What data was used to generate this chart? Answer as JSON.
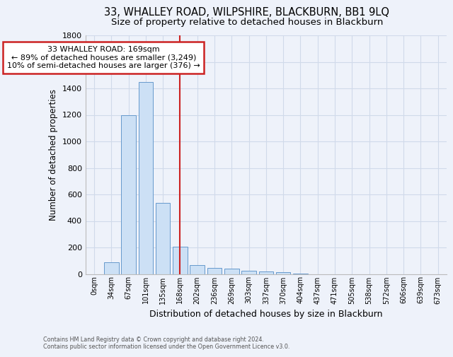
{
  "title": "33, WHALLEY ROAD, WILPSHIRE, BLACKBURN, BB1 9LQ",
  "subtitle": "Size of property relative to detached houses in Blackburn",
  "xlabel": "Distribution of detached houses by size in Blackburn",
  "ylabel": "Number of detached properties",
  "bar_labels": [
    "0sqm",
    "34sqm",
    "67sqm",
    "101sqm",
    "135sqm",
    "168sqm",
    "202sqm",
    "236sqm",
    "269sqm",
    "303sqm",
    "337sqm",
    "370sqm",
    "404sqm",
    "437sqm",
    "471sqm",
    "505sqm",
    "538sqm",
    "572sqm",
    "606sqm",
    "639sqm",
    "673sqm"
  ],
  "bar_values": [
    0,
    90,
    1200,
    1450,
    535,
    205,
    65,
    48,
    38,
    25,
    18,
    12,
    5,
    0,
    0,
    0,
    0,
    0,
    0,
    0,
    0
  ],
  "bar_color": "#cce0f5",
  "bar_edge_color": "#6699cc",
  "vline_x": 5,
  "annotation_text": "  33 WHALLEY ROAD: 169sqm  \n← 89% of detached houses are smaller (3,249)\n10% of semi-detached houses are larger (376) →",
  "annotation_box_color": "#ffffff",
  "annotation_box_edge": "#cc2222",
  "vline_color": "#cc2222",
  "ylim": [
    0,
    1800
  ],
  "yticks": [
    0,
    200,
    400,
    600,
    800,
    1000,
    1200,
    1400,
    1600,
    1800
  ],
  "grid_color": "#d0daea",
  "footer_line1": "Contains HM Land Registry data © Crown copyright and database right 2024.",
  "footer_line2": "Contains public sector information licensed under the Open Government Licence v3.0.",
  "bg_color": "#eef2fa",
  "title_fontsize": 10.5,
  "subtitle_fontsize": 9.5,
  "footer_color": "#555555"
}
